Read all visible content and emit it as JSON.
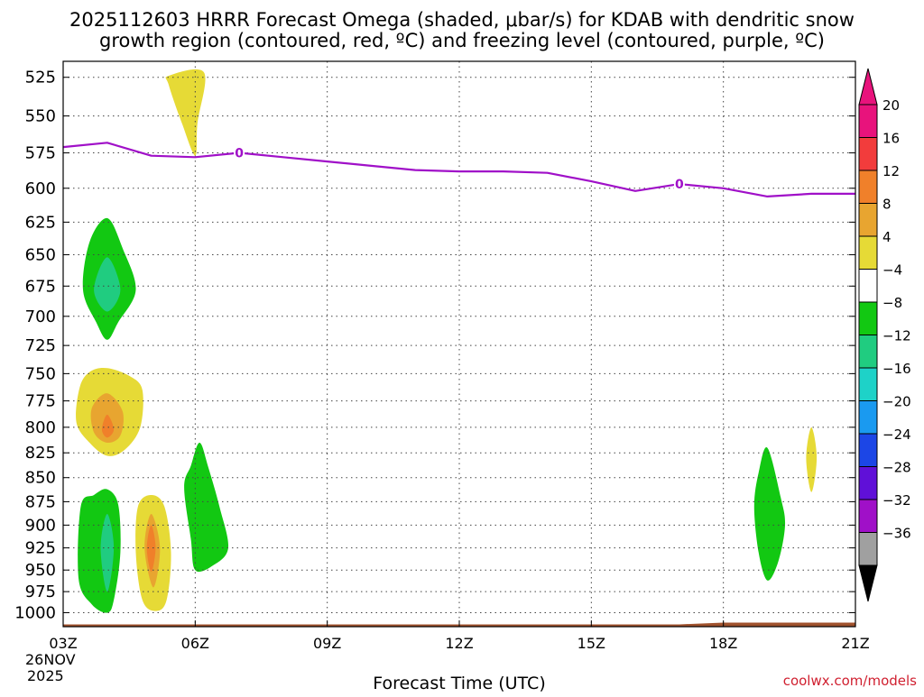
{
  "chart_data": {
    "type": "heatmap",
    "title_line1": "2025112603 HRRR Forecast Omega (shaded, μbar/s) for KDAB with dendritic snow",
    "title_line2": "growth region (contoured, red, ºC) and freezing level (contoured, purple, ºC)",
    "xlabel": "Forecast Time (UTC)",
    "credit": "coolwx.com/models",
    "x_ticks": [
      {
        "hour": 0,
        "label": "03Z"
      },
      {
        "hour": 3,
        "label": "06Z"
      },
      {
        "hour": 6,
        "label": "09Z"
      },
      {
        "hour": 9,
        "label": "12Z"
      },
      {
        "hour": 12,
        "label": "15Z"
      },
      {
        "hour": 15,
        "label": "18Z"
      },
      {
        "hour": 18,
        "label": "21Z"
      }
    ],
    "x_date_line1": "26NOV",
    "x_date_line2": "2025",
    "xlim": [
      0,
      18
    ],
    "y_ticks": [
      525,
      550,
      575,
      600,
      625,
      650,
      675,
      700,
      725,
      750,
      775,
      800,
      825,
      850,
      875,
      900,
      925,
      950,
      975,
      1000
    ],
    "ylim": [
      1017,
      515
    ],
    "y_scale": "log-pressure (mb, inverted)",
    "grid": true,
    "colorbar": {
      "ticks": [
        20,
        16,
        12,
        8,
        4,
        -4,
        -8,
        -12,
        -16,
        -20,
        -24,
        -28,
        -32,
        -36
      ],
      "bins": [
        {
          "from": 20,
          "to": 24,
          "color": "#e8137c"
        },
        {
          "from": 16,
          "to": 20,
          "color": "#f23c3c"
        },
        {
          "from": 12,
          "to": 16,
          "color": "#f0802a"
        },
        {
          "from": 8,
          "to": 12,
          "color": "#e8a530"
        },
        {
          "from": 4,
          "to": 8,
          "color": "#e6da36"
        },
        {
          "from": -4,
          "to": 4,
          "color": "#ffffff"
        },
        {
          "from": -8,
          "to": -4,
          "color": "#12c812"
        },
        {
          "from": -12,
          "to": -8,
          "color": "#20cc80"
        },
        {
          "from": -16,
          "to": -12,
          "color": "#1ed2c8"
        },
        {
          "from": -20,
          "to": -16,
          "color": "#1a9af0"
        },
        {
          "from": -24,
          "to": -20,
          "color": "#1c46e6"
        },
        {
          "from": -28,
          "to": -24,
          "color": "#6010d8"
        },
        {
          "from": -32,
          "to": -28,
          "color": "#a010c8"
        },
        {
          "from": -36,
          "to": -32,
          "color": "#a0a0a0"
        }
      ],
      "top_arrow_color": "#e8137c",
      "bottom_arrow_color": "#000000"
    },
    "shaded_regions": [
      {
        "name": "rising-aloft",
        "color": "#e6da36",
        "points": [
          [
            2.4,
            524
          ],
          [
            3.2,
            522
          ],
          [
            3.05,
            555
          ],
          [
            3.0,
            577
          ],
          [
            2.7,
            555
          ],
          [
            2.4,
            530
          ]
        ]
      },
      {
        "name": "sinking-700mb",
        "color": "#12c812",
        "points": [
          [
            1.0,
            622
          ],
          [
            1.35,
            645
          ],
          [
            1.65,
            678
          ],
          [
            1.25,
            705
          ],
          [
            1.0,
            720
          ],
          [
            0.75,
            705
          ],
          [
            0.45,
            678
          ],
          [
            0.6,
            640
          ]
        ]
      },
      {
        "name": "sinking-700mb-core",
        "color": "#20cc80",
        "points": [
          [
            1.0,
            652
          ],
          [
            1.3,
            678
          ],
          [
            1.0,
            696
          ],
          [
            0.7,
            678
          ]
        ]
      },
      {
        "name": "rising-780mb",
        "color": "#e6da36",
        "points": [
          [
            1.0,
            745
          ],
          [
            1.5,
            752
          ],
          [
            1.8,
            765
          ],
          [
            1.75,
            800
          ],
          [
            1.4,
            822
          ],
          [
            1.0,
            828
          ],
          [
            0.6,
            815
          ],
          [
            0.3,
            795
          ],
          [
            0.38,
            762
          ],
          [
            0.62,
            748
          ]
        ]
      },
      {
        "name": "rising-780mb-mid",
        "color": "#e8a530",
        "points": [
          [
            1.0,
            768
          ],
          [
            1.35,
            785
          ],
          [
            1.3,
            808
          ],
          [
            1.0,
            815
          ],
          [
            0.7,
            805
          ],
          [
            0.65,
            782
          ]
        ]
      },
      {
        "name": "rising-780mb-core",
        "color": "#f0802a",
        "points": [
          [
            1.0,
            788
          ],
          [
            1.15,
            802
          ],
          [
            1.0,
            810
          ],
          [
            0.88,
            802
          ]
        ]
      },
      {
        "name": "sinking-925mb",
        "color": "#12c812",
        "points": [
          [
            1.0,
            862
          ],
          [
            1.25,
            878
          ],
          [
            1.3,
            930
          ],
          [
            1.15,
            985
          ],
          [
            1.0,
            1000
          ],
          [
            0.65,
            990
          ],
          [
            0.35,
            960
          ],
          [
            0.4,
            880
          ],
          [
            0.7,
            868
          ]
        ]
      },
      {
        "name": "sinking-925mb-core",
        "color": "#20cc80",
        "points": [
          [
            1.0,
            888
          ],
          [
            1.15,
            925
          ],
          [
            1.0,
            975
          ],
          [
            0.85,
            925
          ]
        ]
      },
      {
        "name": "rising-925mb",
        "color": "#e6da36",
        "points": [
          [
            2.0,
            868
          ],
          [
            2.3,
            880
          ],
          [
            2.45,
            930
          ],
          [
            2.35,
            985
          ],
          [
            2.1,
            998
          ],
          [
            1.8,
            985
          ],
          [
            1.65,
            930
          ],
          [
            1.7,
            880
          ]
        ]
      },
      {
        "name": "rising-925mb-mid",
        "color": "#e8a530",
        "points": [
          [
            2.0,
            888
          ],
          [
            2.2,
            925
          ],
          [
            2.05,
            970
          ],
          [
            1.85,
            925
          ]
        ]
      },
      {
        "name": "rising-925mb-core",
        "color": "#f0802a",
        "points": [
          [
            2.0,
            900
          ],
          [
            2.1,
            925
          ],
          [
            2.0,
            952
          ],
          [
            1.9,
            925
          ]
        ]
      },
      {
        "name": "sinking-06z",
        "color": "#12c812",
        "points": [
          [
            2.9,
            838
          ],
          [
            3.1,
            815
          ],
          [
            3.3,
            840
          ],
          [
            3.55,
            880
          ],
          [
            3.75,
            925
          ],
          [
            3.4,
            945
          ],
          [
            3.0,
            950
          ],
          [
            2.9,
            915
          ],
          [
            2.75,
            860
          ]
        ]
      },
      {
        "name": "sinking-19z",
        "color": "#12c812",
        "points": [
          [
            16.0,
            820
          ],
          [
            16.3,
            870
          ],
          [
            16.4,
            900
          ],
          [
            16.25,
            940
          ],
          [
            16.0,
            962
          ],
          [
            15.8,
            930
          ],
          [
            15.7,
            880
          ],
          [
            15.8,
            845
          ]
        ]
      },
      {
        "name": "rising-20z",
        "color": "#e6da36",
        "points": [
          [
            17.0,
            800
          ],
          [
            17.12,
            830
          ],
          [
            17.0,
            865
          ],
          [
            16.88,
            830
          ]
        ]
      }
    ],
    "freezing_level": {
      "color": "#a010c8",
      "label": "0",
      "label_hours": [
        4,
        14
      ],
      "points": [
        [
          0,
          571
        ],
        [
          1,
          568
        ],
        [
          2,
          577
        ],
        [
          3,
          578
        ],
        [
          4,
          575
        ],
        [
          5,
          578
        ],
        [
          6,
          581
        ],
        [
          7,
          584
        ],
        [
          8,
          587
        ],
        [
          9,
          588
        ],
        [
          10,
          588
        ],
        [
          11,
          589
        ],
        [
          12,
          595
        ],
        [
          13,
          602
        ],
        [
          14,
          597
        ],
        [
          15,
          600
        ],
        [
          16,
          606
        ],
        [
          17,
          604
        ],
        [
          18,
          604
        ]
      ]
    },
    "terrain": {
      "color": "#a0522d",
      "top_pressure": 1012
    }
  }
}
